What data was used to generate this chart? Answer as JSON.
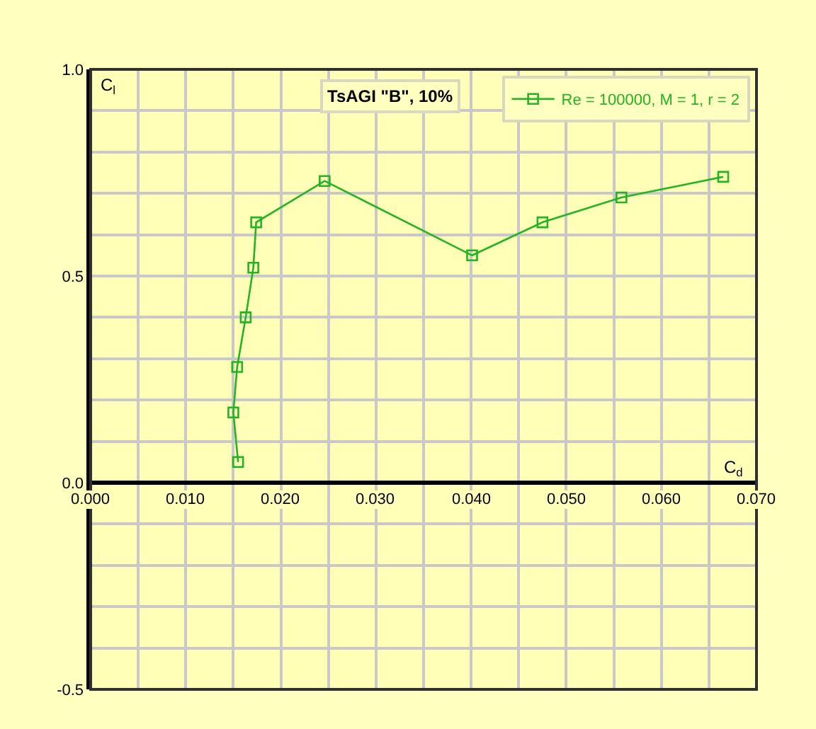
{
  "chart_data": {
    "type": "line",
    "title": "TsAGI \"B\", 10%",
    "xlabel": "C$_{d}$",
    "ylabel": "C$_{l}$",
    "x": [
      0.0155,
      0.015,
      0.0154,
      0.0163,
      0.0171,
      0.0174,
      0.0246,
      0.0401,
      0.0475,
      0.0558,
      0.0665
    ],
    "series": [
      {
        "name": "Re = 100000, M = 1, r = 2",
        "color": "#22b422",
        "values": [
          0.05,
          0.17,
          0.28,
          0.4,
          0.52,
          0.63,
          0.73,
          0.55,
          0.63,
          0.69,
          0.74
        ]
      }
    ],
    "xlim": [
      0,
      0.07
    ],
    "ylim": [
      -0.5,
      1.0
    ],
    "xticks": [
      {
        "value": 0,
        "label": "0.000"
      },
      {
        "value": 0.005,
        "label": null
      },
      {
        "value": 0.01,
        "label": "0.010"
      },
      {
        "value": 0.015,
        "label": null
      },
      {
        "value": 0.02,
        "label": "0.020"
      },
      {
        "value": 0.025,
        "label": null
      },
      {
        "value": 0.03,
        "label": "0.030"
      },
      {
        "value": 0.035,
        "label": null
      },
      {
        "value": 0.04,
        "label": "0.040"
      },
      {
        "value": 0.045,
        "label": null
      },
      {
        "value": 0.05,
        "label": "0.050"
      },
      {
        "value": 0.055,
        "label": null
      },
      {
        "value": 0.06,
        "label": "0.060"
      },
      {
        "value": 0.065,
        "label": null
      },
      {
        "value": 0.07,
        "label": "0.070"
      }
    ],
    "yticks": [
      {
        "value": -0.5,
        "label": "-0.5"
      },
      {
        "value": -0.4,
        "label": null
      },
      {
        "value": -0.3,
        "label": null
      },
      {
        "value": -0.2,
        "label": null
      },
      {
        "value": -0.1,
        "label": null
      },
      {
        "value": 0,
        "label": "0.0"
      },
      {
        "value": 0.1,
        "label": null
      },
      {
        "value": 0.2,
        "label": null
      },
      {
        "value": 0.3,
        "label": null
      },
      {
        "value": 0.4,
        "label": null
      },
      {
        "value": 0.5,
        "label": "0.5"
      },
      {
        "value": 0.6,
        "label": null
      },
      {
        "value": 0.7,
        "label": null
      },
      {
        "value": 0.8,
        "label": null
      },
      {
        "value": 0.9,
        "label": null
      },
      {
        "value": 1.0,
        "label": "1.0"
      }
    ],
    "grid": true,
    "legend": "top right",
    "marker": "square",
    "line_style": "solid"
  }
}
